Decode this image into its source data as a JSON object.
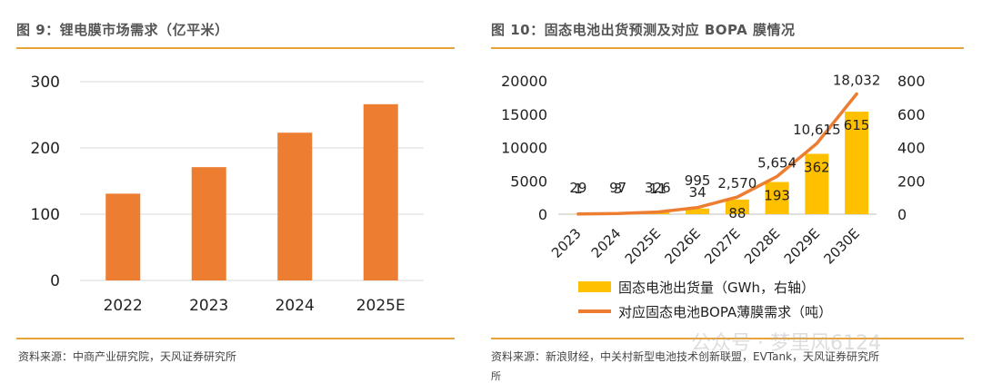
{
  "colors": {
    "bar_left": "#ed7d31",
    "bar_right": "#ffc000",
    "line": "#ed7d31",
    "rule": "#e8a33a"
  },
  "left": {
    "title": "图 9：锂电膜市场需求（亿平米）",
    "source": "资料来源：中商产业研究院，天风证券研究所"
  },
  "right": {
    "title": "图 10：固态电池出货预测及对应 BOPA 膜情况",
    "source": "资料来源：新浪财经，中关村新型电池技术创新联盟，EVTank，天风证券研究所",
    "source_cont": "所"
  },
  "watermark": {
    "text": "公众号 · 梦里风6124"
  },
  "chart_data": [
    {
      "type": "bar",
      "title": "锂电膜市场需求（亿平米）",
      "categories": [
        "2022",
        "2023",
        "2024",
        "2025E"
      ],
      "values": [
        131,
        171,
        223,
        266
      ],
      "ylim": [
        0,
        300
      ],
      "yticks": [
        0,
        100,
        200,
        300
      ],
      "grid": true,
      "legend": "none"
    },
    {
      "type": "bar",
      "title": "固态电池出货预测及对应 BOPA 膜情况",
      "categories": [
        "2023",
        "2024",
        "2025E",
        "2026E",
        "2027E",
        "2028E",
        "2029E",
        "2030E"
      ],
      "series": [
        {
          "name": "固态电池出货量（GWh，右轴）",
          "type": "bar",
          "axis": "right",
          "values": [
            1,
            3,
            11,
            34,
            88,
            193,
            362,
            615
          ]
        },
        {
          "name": "对应固态电池BOPA薄膜需求（吨）",
          "type": "line",
          "axis": "left",
          "values": [
            29,
            97,
            326,
            995,
            2570,
            5654,
            10615,
            18032
          ]
        }
      ],
      "bar_labels": [
        "1",
        "3",
        "11",
        "34",
        "88",
        "193",
        "362",
        "615"
      ],
      "line_labels": [
        "29",
        "97",
        "326",
        "995",
        "2,570",
        "5,654",
        "10,615",
        "18,032"
      ],
      "ylim_left": [
        0,
        20000
      ],
      "yticks_left": [
        "0",
        "5000",
        "10000",
        "15000",
        "20000"
      ],
      "ylim_right": [
        0,
        800
      ],
      "yticks_right": [
        "0",
        "200",
        "400",
        "600",
        "800"
      ],
      "grid": false,
      "legend": "bottom"
    }
  ]
}
